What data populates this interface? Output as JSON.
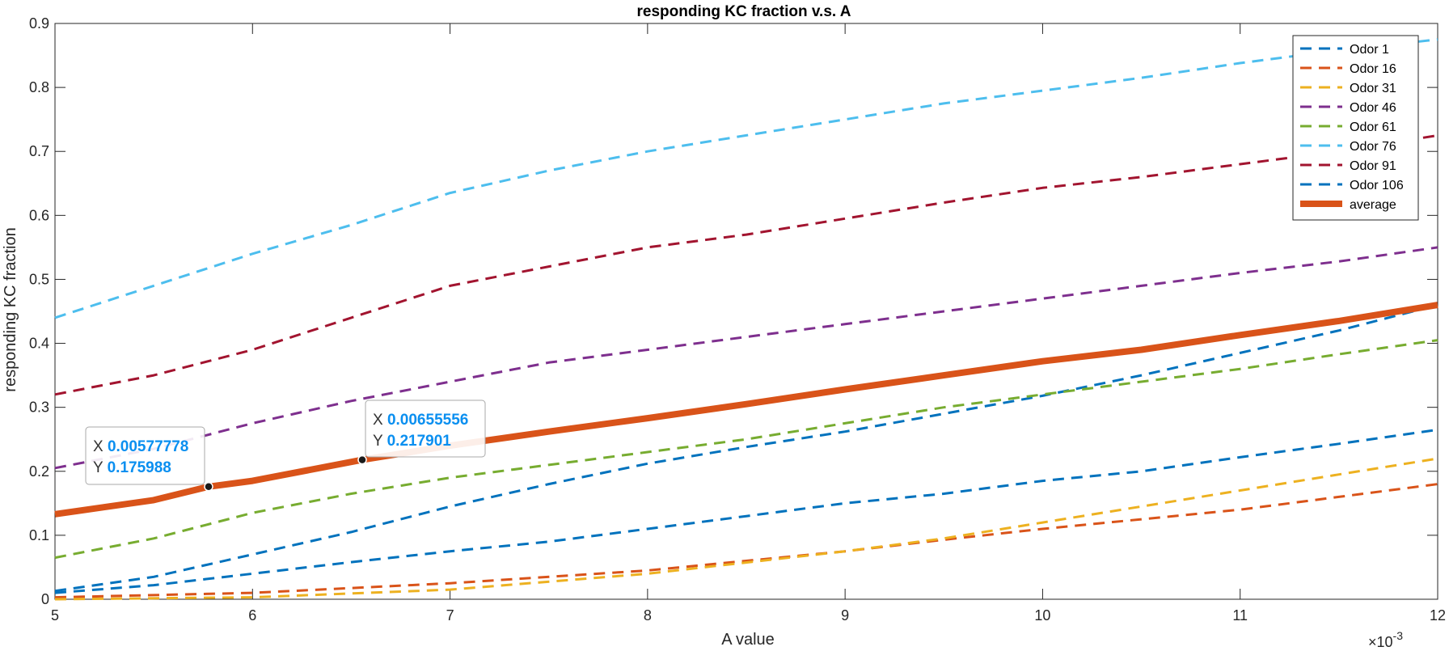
{
  "chart_data": {
    "type": "line",
    "title": "responding KC fraction v.s. A",
    "xlabel": "A value",
    "ylabel": "responding KC fraction",
    "x_exponent_label": "×10",
    "x_exponent_power": "-3",
    "xlim": [
      5,
      12
    ],
    "ylim": [
      0,
      0.9
    ],
    "x_ticks": [
      "5",
      "6",
      "7",
      "8",
      "9",
      "10",
      "11",
      "12"
    ],
    "y_ticks": [
      "0",
      "0.1",
      "0.2",
      "0.3",
      "0.4",
      "0.5",
      "0.6",
      "0.7",
      "0.8",
      "0.9"
    ],
    "legend_position": "top-right",
    "series": [
      {
        "name": "Odor 1",
        "color": "#0072BD",
        "style": "dashed",
        "width": 3,
        "points": [
          [
            5,
            0.013
          ],
          [
            5.5,
            0.035
          ],
          [
            6,
            0.07
          ],
          [
            6.5,
            0.105
          ],
          [
            7,
            0.145
          ],
          [
            7.5,
            0.18
          ],
          [
            8,
            0.212
          ],
          [
            8.5,
            0.238
          ],
          [
            9,
            0.262
          ],
          [
            9.5,
            0.29
          ],
          [
            10,
            0.318
          ],
          [
            10.5,
            0.35
          ],
          [
            11,
            0.385
          ],
          [
            11.5,
            0.42
          ],
          [
            12,
            0.46
          ]
        ]
      },
      {
        "name": "Odor 16",
        "color": "#D95319",
        "style": "dashed",
        "width": 3,
        "points": [
          [
            5,
            0.003
          ],
          [
            6,
            0.01
          ],
          [
            7,
            0.025
          ],
          [
            8,
            0.045
          ],
          [
            8.5,
            0.06
          ],
          [
            9,
            0.075
          ],
          [
            9.5,
            0.093
          ],
          [
            10,
            0.11
          ],
          [
            10.5,
            0.125
          ],
          [
            11,
            0.14
          ],
          [
            11.5,
            0.16
          ],
          [
            12,
            0.18
          ]
        ]
      },
      {
        "name": "Odor 31",
        "color": "#EDB120",
        "style": "dashed",
        "width": 3,
        "points": [
          [
            5,
            0.0
          ],
          [
            6,
            0.003
          ],
          [
            7,
            0.015
          ],
          [
            8,
            0.04
          ],
          [
            9,
            0.075
          ],
          [
            9.5,
            0.095
          ],
          [
            10,
            0.12
          ],
          [
            10.5,
            0.145
          ],
          [
            11,
            0.17
          ],
          [
            11.5,
            0.195
          ],
          [
            12,
            0.22
          ]
        ]
      },
      {
        "name": "Odor 46",
        "color": "#7E2F8E",
        "style": "dashed",
        "width": 3,
        "points": [
          [
            5,
            0.205
          ],
          [
            5.5,
            0.235
          ],
          [
            6,
            0.275
          ],
          [
            6.5,
            0.31
          ],
          [
            7,
            0.34
          ],
          [
            7.5,
            0.37
          ],
          [
            8,
            0.39
          ],
          [
            8.5,
            0.41
          ],
          [
            9,
            0.43
          ],
          [
            9.5,
            0.45
          ],
          [
            10,
            0.47
          ],
          [
            10.5,
            0.49
          ],
          [
            11,
            0.51
          ],
          [
            11.5,
            0.528
          ],
          [
            12,
            0.55
          ]
        ]
      },
      {
        "name": "Odor 61",
        "color": "#77AC30",
        "style": "dashed",
        "width": 3,
        "points": [
          [
            5,
            0.065
          ],
          [
            5.5,
            0.095
          ],
          [
            6,
            0.135
          ],
          [
            6.5,
            0.165
          ],
          [
            7,
            0.19
          ],
          [
            7.5,
            0.21
          ],
          [
            8,
            0.23
          ],
          [
            8.5,
            0.25
          ],
          [
            9,
            0.275
          ],
          [
            9.5,
            0.3
          ],
          [
            10,
            0.32
          ],
          [
            10.5,
            0.34
          ],
          [
            11,
            0.36
          ],
          [
            11.5,
            0.383
          ],
          [
            12,
            0.405
          ]
        ]
      },
      {
        "name": "Odor 76",
        "color": "#4DBEEE",
        "style": "dashed",
        "width": 3,
        "points": [
          [
            5,
            0.44
          ],
          [
            5.5,
            0.49
          ],
          [
            6,
            0.54
          ],
          [
            6.5,
            0.585
          ],
          [
            7,
            0.635
          ],
          [
            7.5,
            0.67
          ],
          [
            8,
            0.7
          ],
          [
            8.5,
            0.725
          ],
          [
            9,
            0.75
          ],
          [
            9.5,
            0.775
          ],
          [
            10,
            0.795
          ],
          [
            10.5,
            0.815
          ],
          [
            11,
            0.838
          ],
          [
            11.5,
            0.858
          ],
          [
            12,
            0.875
          ]
        ]
      },
      {
        "name": "Odor 91",
        "color": "#A2142F",
        "style": "dashed",
        "width": 3,
        "points": [
          [
            5,
            0.32
          ],
          [
            5.5,
            0.35
          ],
          [
            6,
            0.39
          ],
          [
            6.5,
            0.44
          ],
          [
            7,
            0.49
          ],
          [
            7.5,
            0.52
          ],
          [
            8,
            0.55
          ],
          [
            8.5,
            0.57
          ],
          [
            9,
            0.595
          ],
          [
            9.5,
            0.62
          ],
          [
            10,
            0.643
          ],
          [
            10.5,
            0.66
          ],
          [
            11,
            0.68
          ],
          [
            11.5,
            0.7
          ],
          [
            12,
            0.725
          ]
        ]
      },
      {
        "name": "Odor 106",
        "color": "#0072BD",
        "style": "dashed",
        "width": 3,
        "points": [
          [
            5,
            0.01
          ],
          [
            5.5,
            0.022
          ],
          [
            6,
            0.04
          ],
          [
            6.5,
            0.058
          ],
          [
            7,
            0.075
          ],
          [
            7.5,
            0.09
          ],
          [
            8,
            0.11
          ],
          [
            8.5,
            0.13
          ],
          [
            9,
            0.15
          ],
          [
            9.5,
            0.165
          ],
          [
            10,
            0.185
          ],
          [
            10.5,
            0.2
          ],
          [
            11,
            0.222
          ],
          [
            11.5,
            0.243
          ],
          [
            12,
            0.265
          ]
        ]
      },
      {
        "name": "average",
        "color": "#D95319",
        "style": "solid",
        "width": 8,
        "points": [
          [
            5,
            0.133
          ],
          [
            5.5,
            0.155
          ],
          [
            5.77778,
            0.175988
          ],
          [
            6,
            0.185
          ],
          [
            6.55556,
            0.217901
          ],
          [
            7,
            0.24
          ],
          [
            7.5,
            0.262
          ],
          [
            8,
            0.283
          ],
          [
            8.5,
            0.305
          ],
          [
            9,
            0.328
          ],
          [
            9.5,
            0.35
          ],
          [
            10,
            0.372
          ],
          [
            10.5,
            0.39
          ],
          [
            11,
            0.413
          ],
          [
            11.5,
            0.435
          ],
          [
            12,
            0.46
          ]
        ]
      }
    ],
    "datatips": [
      {
        "x_key": "X",
        "y_key": "Y",
        "x_label": "0.00577778",
        "y_label": "0.175988",
        "x": 5.77778,
        "y": 0.175988
      },
      {
        "x_key": "X",
        "y_key": "Y",
        "x_label": "0.00655556",
        "y_label": "0.217901",
        "x": 6.55556,
        "y": 0.217901
      }
    ]
  }
}
